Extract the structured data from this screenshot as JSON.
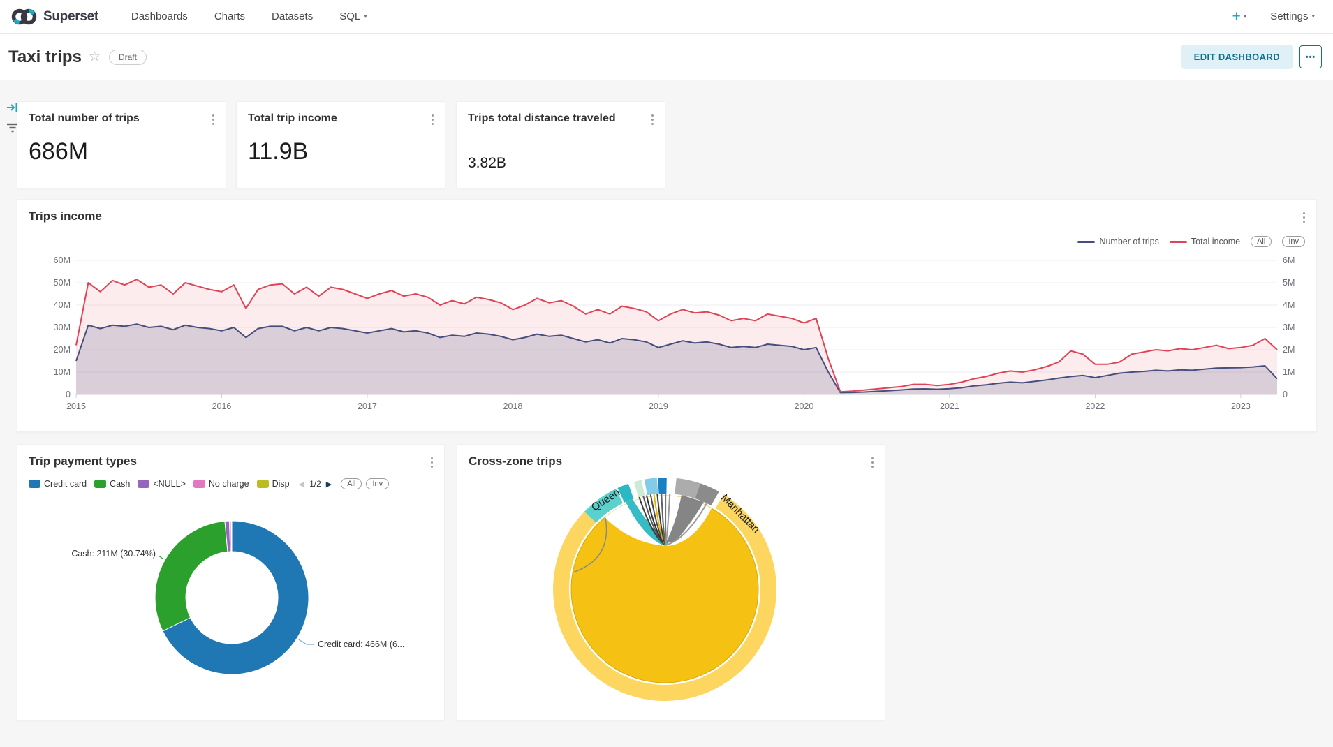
{
  "nav": {
    "brand": "Superset",
    "items": [
      {
        "label": "Dashboards"
      },
      {
        "label": "Charts"
      },
      {
        "label": "Datasets"
      },
      {
        "label": "SQL"
      }
    ],
    "plus_label": "+",
    "settings_label": "Settings"
  },
  "header": {
    "title": "Taxi trips",
    "badge": "Draft",
    "edit_button": "EDIT DASHBOARD",
    "more_button": "•••"
  },
  "cards": [
    {
      "title": "Total number of trips",
      "value": "686M"
    },
    {
      "title": "Total trip income",
      "value": "11.9B"
    },
    {
      "title": "Trips total distance traveled",
      "value": "3.82B"
    }
  ],
  "trips_income_panel": {
    "title": "Trips income",
    "legend": [
      {
        "label": "Number of trips",
        "color": "#454E7C"
      },
      {
        "label": "Total income",
        "color": "#E04355"
      }
    ],
    "pills": [
      "All",
      "Inv"
    ]
  },
  "payment_panel": {
    "title": "Trip payment types",
    "legend_items": [
      {
        "label": "Credit card",
        "color": "#1F77B4"
      },
      {
        "label": "Cash",
        "color": "#2CA02C"
      },
      {
        "label": "<NULL>",
        "color": "#9467BD"
      },
      {
        "label": "No charge",
        "color": "#E377C2"
      },
      {
        "label": "Disp",
        "color": "#BCBD22"
      }
    ],
    "pager": {
      "prev": "◀",
      "label": "1/2",
      "next": "▶"
    },
    "pills": [
      "All",
      "Inv"
    ],
    "callouts": {
      "cash": "Cash: 211M (30.74%)",
      "credit": "Credit card: 466M (6..."
    }
  },
  "crosszone_panel": {
    "title": "Cross-zone trips",
    "zone_labels": [
      "Queen",
      "Manhattan"
    ]
  },
  "chart_data": [
    {
      "type": "line",
      "title": "Trips income",
      "x_start": "2015-01",
      "x_end": "2023-04",
      "freq": "monthly",
      "x_ticks": [
        "2015",
        "2016",
        "2017",
        "2018",
        "2019",
        "2020",
        "2021",
        "2022",
        "2023"
      ],
      "y_left": {
        "ticks": [
          "60M",
          "50M",
          "40M",
          "30M",
          "20M",
          "10M",
          "0"
        ],
        "max": 60
      },
      "y_right": {
        "ticks": [
          "6M",
          "5M",
          "4M",
          "3M",
          "2M",
          "1M",
          "0"
        ],
        "max": 6
      },
      "grid": true,
      "legend_position": "top-right",
      "series": [
        {
          "name": "Number of trips",
          "axis": "left",
          "color": "#454E7C",
          "unit": "millions",
          "values": [
            15,
            31,
            29.5,
            31,
            30.5,
            31.5,
            30,
            30.5,
            29,
            31,
            30,
            29.5,
            28.5,
            30,
            25.5,
            29.5,
            30.5,
            30.5,
            28.5,
            30,
            28.5,
            30,
            29.5,
            28.5,
            27.5,
            28.5,
            29.5,
            28,
            28.5,
            27.5,
            25.5,
            26.5,
            26,
            27.5,
            27,
            26,
            24.5,
            25.5,
            27,
            26,
            26.5,
            25,
            23.5,
            24.5,
            23,
            25,
            24.5,
            23.5,
            21,
            22.5,
            24,
            23,
            23.5,
            22.5,
            21,
            21.5,
            21,
            22.5,
            22,
            21.5,
            20,
            21,
            10,
            0.8,
            0.9,
            1.1,
            1.4,
            1.7,
            2,
            2.4,
            2.5,
            2.3,
            2.6,
            3,
            3.8,
            4.3,
            5,
            5.5,
            5.2,
            5.8,
            6.5,
            7.3,
            8,
            8.5,
            7.5,
            8.5,
            9.5,
            10,
            10.3,
            10.8,
            10.5,
            11,
            10.8,
            11.3,
            11.8,
            11.9,
            12,
            12.3,
            12.8,
            7
          ]
        },
        {
          "name": "Total income",
          "axis": "right",
          "color": "#E04355",
          "unit": "millions",
          "values": [
            2.2,
            5.0,
            4.6,
            5.1,
            4.9,
            5.15,
            4.8,
            4.9,
            4.5,
            5.0,
            4.85,
            4.7,
            4.6,
            4.9,
            3.85,
            4.7,
            4.9,
            4.95,
            4.5,
            4.8,
            4.4,
            4.8,
            4.7,
            4.5,
            4.3,
            4.5,
            4.65,
            4.4,
            4.5,
            4.35,
            4.0,
            4.2,
            4.05,
            4.35,
            4.25,
            4.1,
            3.8,
            4.0,
            4.3,
            4.1,
            4.2,
            3.95,
            3.6,
            3.8,
            3.6,
            3.95,
            3.85,
            3.7,
            3.3,
            3.6,
            3.8,
            3.65,
            3.7,
            3.55,
            3.3,
            3.4,
            3.3,
            3.6,
            3.5,
            3.4,
            3.2,
            3.4,
            1.6,
            0.12,
            0.15,
            0.2,
            0.25,
            0.3,
            0.35,
            0.45,
            0.45,
            0.4,
            0.45,
            0.55,
            0.7,
            0.8,
            0.95,
            1.05,
            1.0,
            1.1,
            1.25,
            1.45,
            1.95,
            1.8,
            1.35,
            1.35,
            1.45,
            1.8,
            1.9,
            2.0,
            1.95,
            2.05,
            2.0,
            2.1,
            2.2,
            2.05,
            2.1,
            2.2,
            2.5,
            2.0
          ]
        }
      ]
    },
    {
      "type": "pie",
      "subtype": "donut",
      "title": "Trip payment types",
      "labels": [
        "Credit card",
        "Cash",
        "<NULL>",
        "No charge",
        "Disp"
      ],
      "values_millions": [
        466,
        211,
        6.5,
        2.5,
        1
      ],
      "colors": [
        "#1F77B4",
        "#2CA02C",
        "#9467BD",
        "#E377C2",
        "#BCBD22"
      ],
      "visible_callouts": [
        "Cash: 211M (30.74%)",
        "Credit card: 466M (6..."
      ],
      "legend_page": "1/2"
    },
    {
      "type": "chord",
      "title": "Cross-zone trips",
      "visible_zone_labels": [
        "Queen",
        "Manhattan"
      ],
      "dominant_zone_color": "#F5C113",
      "ring_color": "#FCD65F",
      "segment_colors": [
        "#5BD1CE",
        "#2AB8C2",
        "#CDEBD4",
        "#84CBE9",
        "#1A80C4",
        "#ACACAC",
        "#8B8B8B"
      ]
    }
  ]
}
